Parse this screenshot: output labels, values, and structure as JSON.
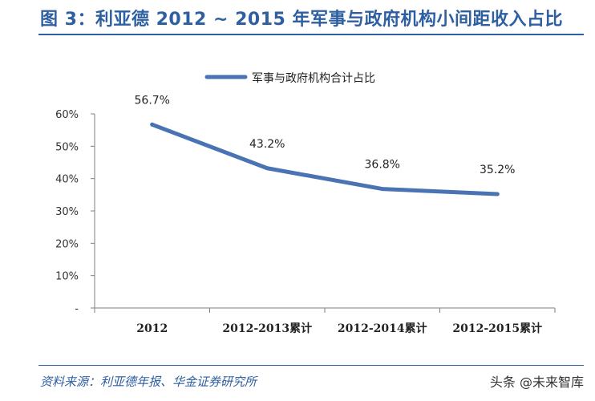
{
  "title": "图 3：利亚德 2012 ~ 2015 年军事与政府机构小间距收入占比",
  "source": "资料来源：利亚德年报、华金证券研究所",
  "watermark": "头条 @未来智库",
  "chart_data": {
    "type": "line",
    "categories": [
      "2012",
      "2012-2013累计",
      "2012-2014累计",
      "2012-2015累计"
    ],
    "series": [
      {
        "name": "军事与政府机构合计占比",
        "values": [
          56.7,
          43.2,
          36.8,
          35.2
        ],
        "color": "#4a73b4"
      }
    ],
    "data_labels": [
      "56.7%",
      "43.2%",
      "36.8%",
      "35.2%"
    ],
    "y_ticks": [
      "-",
      "10%",
      "20%",
      "30%",
      "40%",
      "50%",
      "60%"
    ],
    "ylim": [
      0,
      60
    ],
    "legend_position": "top"
  }
}
